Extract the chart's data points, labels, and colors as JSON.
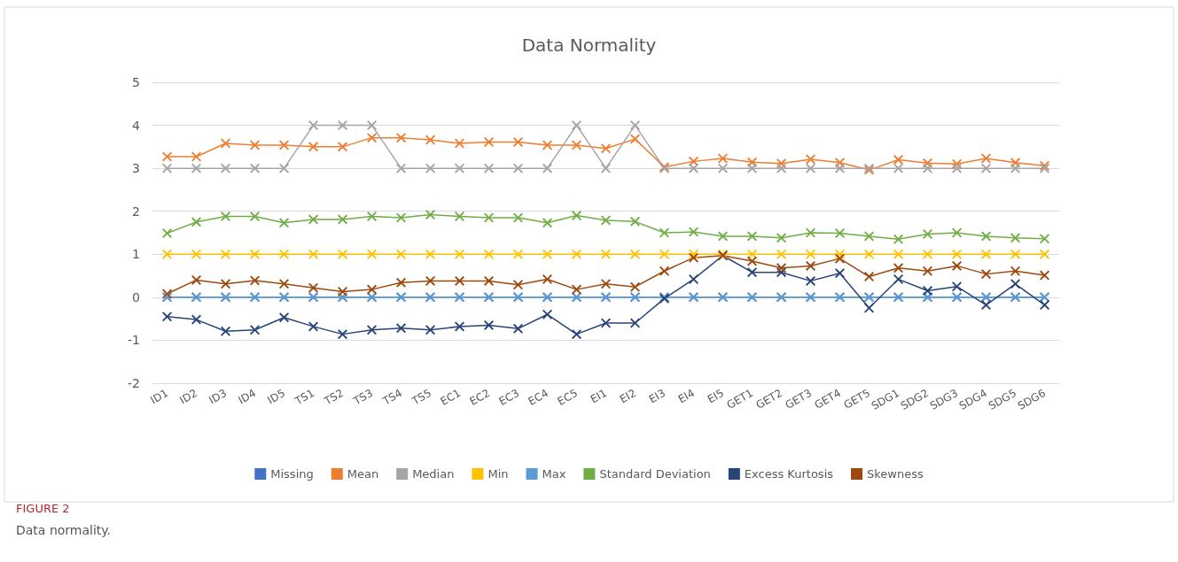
{
  "chart_data": {
    "type": "line",
    "title": "Data Normality",
    "categories": [
      "ID1",
      "ID2",
      "ID3",
      "ID4",
      "ID5",
      "TS1",
      "TS2",
      "TS3",
      "TS4",
      "TS5",
      "EC1",
      "EC2",
      "EC3",
      "EC4",
      "EC5",
      "EI1",
      "EI2",
      "EI3",
      "EI4",
      "EI5",
      "GET1",
      "GET2",
      "GET3",
      "GET4",
      "GET5",
      "SDG1",
      "SDG2",
      "SDG3",
      "SDG4",
      "SDG5",
      "SDG6"
    ],
    "series": [
      {
        "name": "Missing",
        "color": "#4472c4",
        "values": [
          0,
          0,
          0,
          0,
          0,
          0,
          0,
          0,
          0,
          0,
          0,
          0,
          0,
          0,
          0,
          0,
          0,
          0,
          0,
          0,
          0,
          0,
          0,
          0,
          0,
          0,
          0,
          0,
          0,
          0,
          0
        ]
      },
      {
        "name": "Mean",
        "color": "#ed7d31",
        "values": [
          3.27,
          3.27,
          3.58,
          3.54,
          3.54,
          3.5,
          3.5,
          3.71,
          3.71,
          3.66,
          3.58,
          3.61,
          3.61,
          3.54,
          3.54,
          3.46,
          3.68,
          3.03,
          3.16,
          3.23,
          3.14,
          3.11,
          3.21,
          3.13,
          2.96,
          3.2,
          3.12,
          3.1,
          3.23,
          3.13,
          3.06
        ]
      },
      {
        "name": "Median",
        "color": "#a5a5a5",
        "values": [
          3,
          3,
          3,
          3,
          3,
          4,
          4,
          4,
          3,
          3,
          3,
          3,
          3,
          3,
          4,
          3,
          4,
          3,
          3,
          3,
          3,
          3,
          3,
          3,
          3,
          3,
          3,
          3,
          3,
          3,
          3
        ]
      },
      {
        "name": "Min",
        "color": "#ffc000",
        "values": [
          1,
          1,
          1,
          1,
          1,
          1,
          1,
          1,
          1,
          1,
          1,
          1,
          1,
          1,
          1,
          1,
          1,
          1,
          1,
          1,
          1,
          1,
          1,
          1,
          1,
          1,
          1,
          1,
          1,
          1,
          1
        ]
      },
      {
        "name": "Max",
        "color": "#5b9bd5",
        "values": [
          0,
          0,
          0,
          0,
          0,
          0,
          0,
          0,
          0,
          0,
          0,
          0,
          0,
          0,
          0,
          0,
          0,
          0,
          0,
          0,
          0,
          0,
          0,
          0,
          0,
          0,
          0,
          0,
          0,
          0,
          0
        ]
      },
      {
        "name": "Standard Deviation",
        "color": "#70ad47",
        "values": [
          1.49,
          1.75,
          1.88,
          1.88,
          1.73,
          1.81,
          1.81,
          1.88,
          1.85,
          1.92,
          1.88,
          1.85,
          1.85,
          1.73,
          1.9,
          1.79,
          1.76,
          1.5,
          1.52,
          1.42,
          1.42,
          1.38,
          1.5,
          1.49,
          1.42,
          1.35,
          1.47,
          1.5,
          1.42,
          1.38,
          1.36
        ]
      },
      {
        "name": "Excess Kurtosis",
        "color": "#264478",
        "values": [
          -0.45,
          -0.52,
          -0.79,
          -0.76,
          -0.47,
          -0.68,
          -0.86,
          -0.76,
          -0.72,
          -0.76,
          -0.68,
          -0.65,
          -0.73,
          -0.4,
          -0.86,
          -0.6,
          -0.6,
          -0.03,
          0.42,
          0.97,
          0.58,
          0.58,
          0.38,
          0.56,
          -0.25,
          0.42,
          0.15,
          0.25,
          -0.18,
          0.31,
          -0.18
        ]
      },
      {
        "name": "Skewness",
        "color": "#9e480e",
        "values": [
          0.08,
          0.4,
          0.31,
          0.39,
          0.31,
          0.22,
          0.13,
          0.18,
          0.34,
          0.38,
          0.38,
          0.38,
          0.29,
          0.42,
          0.18,
          0.31,
          0.24,
          0.61,
          0.92,
          0.97,
          0.84,
          0.68,
          0.73,
          0.9,
          0.48,
          0.68,
          0.61,
          0.73,
          0.54,
          0.61,
          0.51
        ]
      }
    ],
    "ylim": [
      -2,
      5
    ],
    "yticks": [
      -2,
      -1,
      0,
      1,
      2,
      3,
      4,
      5
    ],
    "grid": "y",
    "legend": "bottom",
    "marker": "cross",
    "line_style": "solid",
    "annotations": [
      "FIGURE 2",
      "Data normality."
    ]
  }
}
